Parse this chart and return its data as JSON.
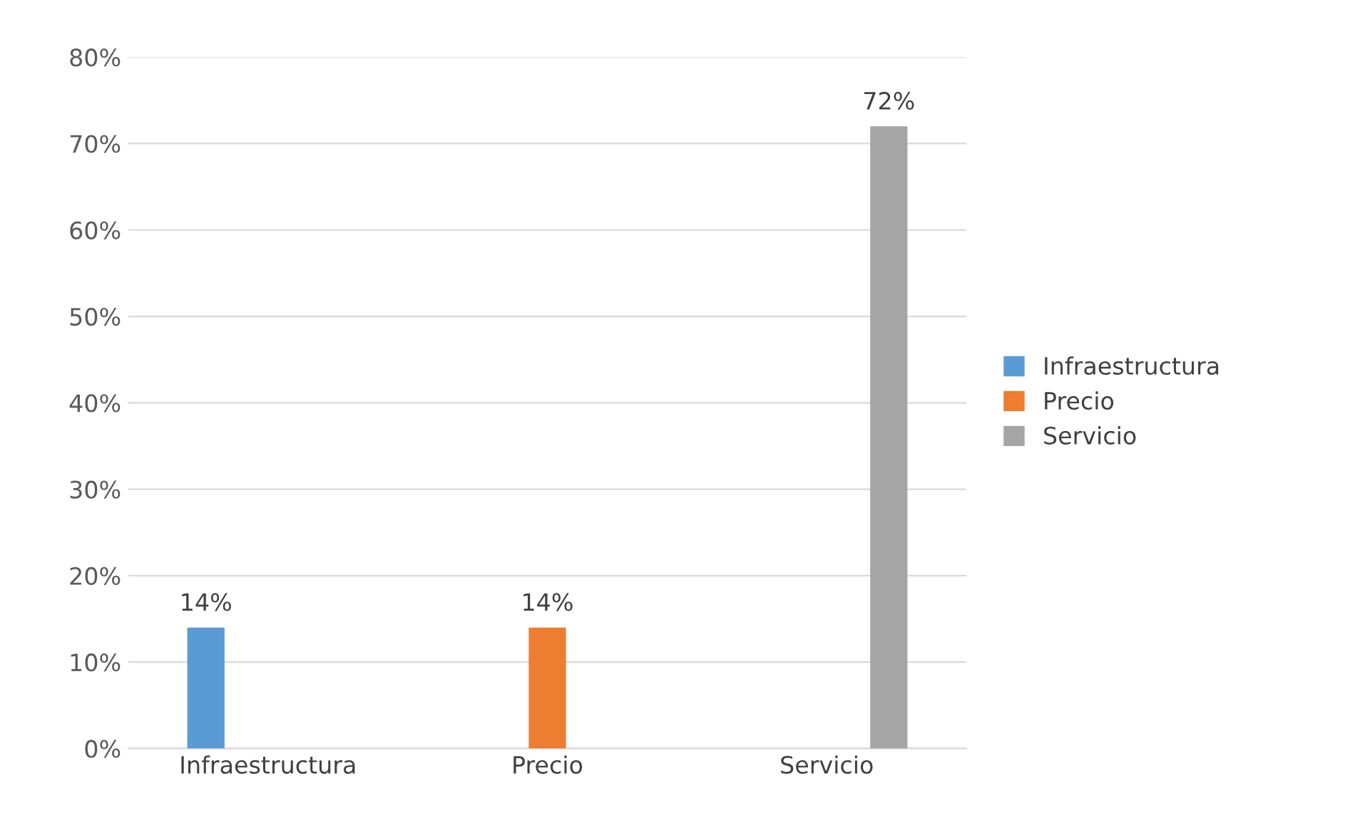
{
  "chart_data": {
    "type": "bar",
    "categories": [
      "Infraestructura",
      "Precio",
      "Servicio"
    ],
    "series": [
      {
        "name": "Infraestructura",
        "color": "#5b9bd5",
        "values": [
          14,
          null,
          null
        ]
      },
      {
        "name": "Precio",
        "color": "#ed7d31",
        "values": [
          null,
          14,
          null
        ]
      },
      {
        "name": "Servicio",
        "color": "#a5a5a5",
        "values": [
          null,
          null,
          72
        ]
      }
    ],
    "ylim": [
      0,
      80
    ],
    "yticks": [
      {
        "value": 0,
        "label": "0%"
      },
      {
        "value": 10,
        "label": "10%"
      },
      {
        "value": 20,
        "label": "20%"
      },
      {
        "value": 30,
        "label": "30%"
      },
      {
        "value": 40,
        "label": "40%"
      },
      {
        "value": 50,
        "label": "50%"
      },
      {
        "value": 60,
        "label": "60%"
      },
      {
        "value": 70,
        "label": "70%"
      },
      {
        "value": 80,
        "label": "80%"
      }
    ],
    "value_labels": [
      "14%",
      "14%",
      "72%"
    ],
    "grid": "y",
    "legend": "right"
  }
}
